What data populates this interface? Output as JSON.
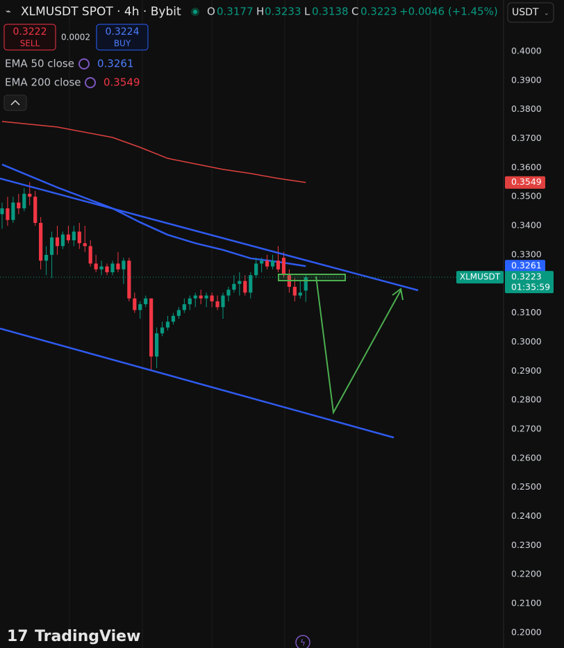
{
  "header": {
    "symbol": "XLMUSDT SPOT · 4h · Bybit",
    "o": "O",
    "h": "H",
    "l": "L",
    "c": "C",
    "change": "+0.0046 (+1.45%)",
    "currency": "USDT",
    "brand": "TradingView"
  },
  "trade": {
    "sell_price": "0.3222",
    "sell": "SELL",
    "spread": "0.0002",
    "buy_price": "0.3224",
    "buy": "BUY"
  },
  "price_tag": {
    "symbol": "XLMUSDT",
    "countdown": "01:35:59"
  },
  "chart_data": {
    "type": "candlestick",
    "up_color": "#089981",
    "down_color": "#f23645",
    "open": [
      0.344,
      0.346,
      0.342,
      0.348,
      0.346,
      0.351,
      0.35,
      0.341,
      0.328,
      0.33,
      0.336,
      0.333,
      0.337,
      0.335,
      0.338,
      0.334,
      0.333,
      0.327,
      0.325,
      0.326,
      0.324,
      0.327,
      0.325,
      0.328,
      0.315,
      0.311,
      0.313,
      0.315,
      0.295,
      0.303,
      0.305,
      0.307,
      0.309,
      0.311,
      0.313,
      0.315,
      0.316,
      0.315,
      0.316,
      0.314,
      0.312,
      0.316,
      0.318,
      0.32,
      0.321,
      0.317,
      0.323,
      0.327,
      0.328,
      0.326,
      0.328,
      0.329,
      0.323,
      0.319,
      0.316,
      0.3177
    ],
    "high": [
      0.348,
      0.35,
      0.35,
      0.351,
      0.353,
      0.355,
      0.352,
      0.343,
      0.333,
      0.338,
      0.34,
      0.338,
      0.34,
      0.34,
      0.341,
      0.34,
      0.335,
      0.33,
      0.328,
      0.327,
      0.328,
      0.331,
      0.329,
      0.329,
      0.317,
      0.314,
      0.316,
      0.315,
      0.305,
      0.307,
      0.309,
      0.31,
      0.312,
      0.315,
      0.316,
      0.317,
      0.318,
      0.317,
      0.317,
      0.316,
      0.317,
      0.319,
      0.323,
      0.324,
      0.323,
      0.324,
      0.329,
      0.329,
      0.33,
      0.33,
      0.333,
      0.331,
      0.325,
      0.322,
      0.321,
      0.3233
    ],
    "low": [
      0.339,
      0.34,
      0.341,
      0.344,
      0.345,
      0.347,
      0.34,
      0.325,
      0.323,
      0.322,
      0.33,
      0.332,
      0.334,
      0.333,
      0.332,
      0.331,
      0.326,
      0.324,
      0.323,
      0.323,
      0.323,
      0.324,
      0.32,
      0.314,
      0.31,
      0.308,
      0.312,
      0.29,
      0.291,
      0.302,
      0.304,
      0.306,
      0.308,
      0.31,
      0.311,
      0.312,
      0.313,
      0.312,
      0.312,
      0.311,
      0.308,
      0.314,
      0.317,
      0.316,
      0.316,
      0.315,
      0.322,
      0.324,
      0.325,
      0.325,
      0.324,
      0.322,
      0.317,
      0.314,
      0.315,
      0.3138
    ],
    "close": [
      0.346,
      0.342,
      0.348,
      0.346,
      0.351,
      0.35,
      0.341,
      0.328,
      0.33,
      0.336,
      0.333,
      0.337,
      0.335,
      0.338,
      0.334,
      0.333,
      0.327,
      0.325,
      0.326,
      0.324,
      0.327,
      0.325,
      0.328,
      0.315,
      0.311,
      0.313,
      0.315,
      0.295,
      0.303,
      0.305,
      0.307,
      0.309,
      0.311,
      0.313,
      0.315,
      0.316,
      0.315,
      0.316,
      0.314,
      0.312,
      0.316,
      0.318,
      0.32,
      0.321,
      0.317,
      0.323,
      0.327,
      0.328,
      0.326,
      0.328,
      0.325,
      0.323,
      0.319,
      0.316,
      0.317,
      0.3223
    ],
    "series": [
      {
        "name": "EMA 50 close",
        "color": "#2f5bf0",
        "x": [
          0,
          10,
          20,
          25,
          30,
          35,
          40,
          45,
          50,
          55
        ],
        "values": [
          0.3611,
          0.3532,
          0.346,
          0.3412,
          0.3369,
          0.334,
          0.3317,
          0.3288,
          0.3276,
          0.3261
        ]
      },
      {
        "name": "EMA 200 close",
        "color": "#e0413f",
        "x": [
          0,
          10,
          20,
          25,
          30,
          35,
          40,
          45,
          50,
          55
        ],
        "values": [
          0.3759,
          0.374,
          0.3704,
          0.367,
          0.3632,
          0.3613,
          0.3594,
          0.358,
          0.3563,
          0.3549
        ]
      }
    ],
    "ylim": [
      0.1947,
      0.4177
    ],
    "yticks": [
      {
        "value": 0.2,
        "label": "0.2000"
      },
      {
        "value": 0.21,
        "label": "0.2100"
      },
      {
        "value": 0.22,
        "label": "0.2200"
      },
      {
        "value": 0.23,
        "label": "0.2300"
      },
      {
        "value": 0.24,
        "label": "0.2400"
      },
      {
        "value": 0.25,
        "label": "0.2500"
      },
      {
        "value": 0.26,
        "label": "0.2600"
      },
      {
        "value": 0.27,
        "label": "0.2700"
      },
      {
        "value": 0.28,
        "label": "0.2800"
      },
      {
        "value": 0.29,
        "label": "0.2900"
      },
      {
        "value": 0.3,
        "label": "0.3000"
      },
      {
        "value": 0.31,
        "label": "0.3100"
      },
      {
        "value": 0.32,
        "label": "0.3200"
      },
      {
        "value": 0.33,
        "label": "0.3300"
      },
      {
        "value": 0.34,
        "label": "0.3400"
      },
      {
        "value": 0.35,
        "label": "0.3500"
      },
      {
        "value": 0.36,
        "label": "0.3600"
      },
      {
        "value": 0.37,
        "label": "0.3700"
      },
      {
        "value": 0.38,
        "label": "0.3800"
      },
      {
        "value": 0.39,
        "label": "0.3900"
      },
      {
        "value": 0.4,
        "label": "0.4000"
      }
    ],
    "grid": false
  }
}
